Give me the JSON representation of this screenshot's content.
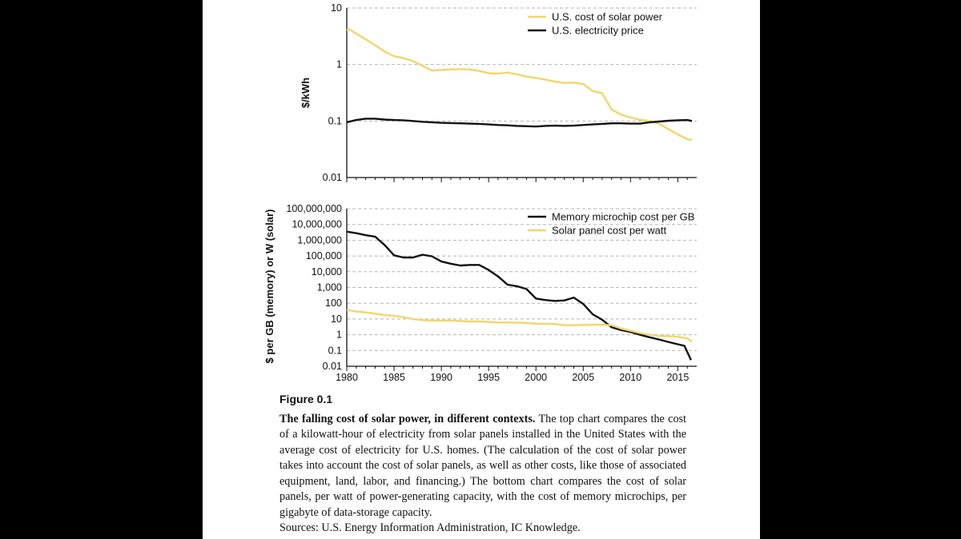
{
  "colors": {
    "solar": "#f2d66b",
    "black": "#111111",
    "grid": "#b5b5b5"
  },
  "caption": {
    "figure_label": "Figure 0.1",
    "title": "The falling cost of solar power, in different contexts.",
    "body": " The top chart compares the cost of a kilowatt-hour of electricity from solar panels installed in the United States with the average cost of electricity for U.S. homes. (The calculation of the cost of solar power takes into account the cost of solar panels, as well as other costs, like those of associated equipment, land, labor, and financing.) The bottom chart compares the cost of solar panels, per watt of power-generating capacity, with the cost of memory microchips, per gigabyte of data-storage capacity.",
    "sources": "Sources: U.S. Energy Information Administration, IC Knowledge."
  },
  "chart_data": [
    {
      "type": "line",
      "title": "",
      "ylabel": "$/kWh",
      "y_scale": "log",
      "ylim": [
        0.01,
        10
      ],
      "y_ticks": [
        0.01,
        0.1,
        1,
        10
      ],
      "y_tick_labels": [
        "0.01",
        "0.1",
        "1",
        "10"
      ],
      "xlim": [
        1980,
        2017
      ],
      "grid": "horizontal dashed",
      "legend": "top-right",
      "series": [
        {
          "name": "U.S. cost of solar power",
          "color": "#f2d66b",
          "points": [
            [
              1980,
              4.0
            ],
            [
              1980.3,
              4.2
            ],
            [
              1981,
              3.5
            ],
            [
              1982,
              2.8
            ],
            [
              1983,
              2.2
            ],
            [
              1984,
              1.7
            ],
            [
              1985,
              1.4
            ],
            [
              1986,
              1.3
            ],
            [
              1987,
              1.15
            ],
            [
              1988,
              0.95
            ],
            [
              1989,
              0.78
            ],
            [
              1990,
              0.8
            ],
            [
              1991,
              0.82
            ],
            [
              1992,
              0.83
            ],
            [
              1993,
              0.82
            ],
            [
              1994,
              0.77
            ],
            [
              1995,
              0.7
            ],
            [
              1996,
              0.69
            ],
            [
              1997,
              0.72
            ],
            [
              1998,
              0.67
            ],
            [
              1999,
              0.61
            ],
            [
              2000,
              0.58
            ],
            [
              2001,
              0.54
            ],
            [
              2002,
              0.5
            ],
            [
              2003,
              0.47
            ],
            [
              2004,
              0.48
            ],
            [
              2005,
              0.45
            ],
            [
              2006,
              0.34
            ],
            [
              2007,
              0.31
            ],
            [
              2008,
              0.16
            ],
            [
              2009,
              0.13
            ],
            [
              2010,
              0.115
            ],
            [
              2011,
              0.105
            ],
            [
              2012,
              0.1
            ],
            [
              2013,
              0.09
            ],
            [
              2014,
              0.072
            ],
            [
              2015,
              0.058
            ],
            [
              2016,
              0.048
            ],
            [
              2016.5,
              0.046
            ]
          ]
        },
        {
          "name": "U.S. electricity price",
          "color": "#111111",
          "points": [
            [
              1980,
              0.095
            ],
            [
              1981,
              0.104
            ],
            [
              1982,
              0.11
            ],
            [
              1983,
              0.11
            ],
            [
              1984,
              0.106
            ],
            [
              1985,
              0.104
            ],
            [
              1986,
              0.103
            ],
            [
              1987,
              0.1
            ],
            [
              1988,
              0.097
            ],
            [
              1989,
              0.095
            ],
            [
              1990,
              0.093
            ],
            [
              1991,
              0.092
            ],
            [
              1992,
              0.091
            ],
            [
              1993,
              0.09
            ],
            [
              1994,
              0.089
            ],
            [
              1995,
              0.087
            ],
            [
              1996,
              0.085
            ],
            [
              1997,
              0.084
            ],
            [
              1998,
              0.082
            ],
            [
              1999,
              0.081
            ],
            [
              2000,
              0.08
            ],
            [
              2001,
              0.082
            ],
            [
              2002,
              0.083
            ],
            [
              2003,
              0.082
            ],
            [
              2004,
              0.083
            ],
            [
              2005,
              0.085
            ],
            [
              2006,
              0.087
            ],
            [
              2007,
              0.089
            ],
            [
              2008,
              0.091
            ],
            [
              2009,
              0.091
            ],
            [
              2010,
              0.09
            ],
            [
              2011,
              0.09
            ],
            [
              2012,
              0.095
            ],
            [
              2013,
              0.098
            ],
            [
              2014,
              0.101
            ],
            [
              2015,
              0.103
            ],
            [
              2016,
              0.104
            ],
            [
              2016.5,
              0.1
            ]
          ]
        }
      ]
    },
    {
      "type": "line",
      "title": "",
      "ylabel": "$ per GB (memory) or W (solar)",
      "y_scale": "log",
      "ylim": [
        0.01,
        100000000
      ],
      "y_ticks": [
        0.01,
        0.1,
        1,
        10,
        100,
        1000,
        10000,
        100000,
        1000000,
        10000000,
        100000000
      ],
      "y_tick_labels": [
        "0.01",
        "0.1",
        "1",
        "10",
        "100",
        "1,000",
        "10,000",
        "100,000",
        "1,000,000",
        "10,000,000",
        "100,000,000"
      ],
      "xlim": [
        1980,
        2017
      ],
      "x_ticks": [
        1980,
        1985,
        1990,
        1995,
        2000,
        2005,
        2010,
        2015
      ],
      "x_tick_labels": [
        "1980",
        "1985",
        "1990",
        "1995",
        "2000",
        "2005",
        "2010",
        "2015"
      ],
      "grid": "horizontal dashed",
      "legend": "top-right",
      "series": [
        {
          "name": "Memory microchip cost per GB",
          "color": "#111111",
          "points": [
            [
              1980,
              3500000
            ],
            [
              1981,
              2800000
            ],
            [
              1982,
              2100000
            ],
            [
              1983,
              1700000
            ],
            [
              1984,
              500000
            ],
            [
              1985,
              110000
            ],
            [
              1986,
              80000
            ],
            [
              1987,
              80000
            ],
            [
              1988,
              120000
            ],
            [
              1989,
              95000
            ],
            [
              1990,
              45000
            ],
            [
              1991,
              32000
            ],
            [
              1992,
              25000
            ],
            [
              1993,
              27000
            ],
            [
              1994,
              27000
            ],
            [
              1995,
              13000
            ],
            [
              1996,
              5000
            ],
            [
              1997,
              1500
            ],
            [
              1998,
              1200
            ],
            [
              1999,
              800
            ],
            [
              2000,
              200
            ],
            [
              2001,
              160
            ],
            [
              2002,
              140
            ],
            [
              2003,
              150
            ],
            [
              2004,
              230
            ],
            [
              2005,
              90
            ],
            [
              2006,
              20
            ],
            [
              2007,
              9
            ],
            [
              2008,
              3
            ],
            [
              2009,
              2
            ],
            [
              2010,
              1.5
            ],
            [
              2011,
              1
            ],
            [
              2012,
              0.7
            ],
            [
              2013,
              0.5
            ],
            [
              2014,
              0.35
            ],
            [
              2015,
              0.25
            ],
            [
              2015.7,
              0.2
            ],
            [
              2016.4,
              0.025
            ]
          ]
        },
        {
          "name": "Solar panel cost per watt",
          "color": "#f2d66b",
          "points": [
            [
              1980,
              38
            ],
            [
              1981,
              30
            ],
            [
              1982,
              26
            ],
            [
              1983,
              22
            ],
            [
              1984,
              18
            ],
            [
              1985,
              16
            ],
            [
              1986,
              13
            ],
            [
              1987,
              10
            ],
            [
              1988,
              8.5
            ],
            [
              1989,
              8
            ],
            [
              1990,
              8
            ],
            [
              1991,
              8
            ],
            [
              1992,
              7.5
            ],
            [
              1993,
              7
            ],
            [
              1994,
              7
            ],
            [
              1995,
              6.5
            ],
            [
              1996,
              6
            ],
            [
              1997,
              6
            ],
            [
              1998,
              6
            ],
            [
              1999,
              5.5
            ],
            [
              2000,
              5
            ],
            [
              2001,
              5
            ],
            [
              2002,
              4.8
            ],
            [
              2003,
              4
            ],
            [
              2004,
              4
            ],
            [
              2005,
              4.2
            ],
            [
              2006,
              4.3
            ],
            [
              2007,
              4.4
            ],
            [
              2008,
              4
            ],
            [
              2009,
              2.5
            ],
            [
              2010,
              1.8
            ],
            [
              2011,
              1.3
            ],
            [
              2012,
              1
            ],
            [
              2013,
              0.85
            ],
            [
              2014,
              0.8
            ],
            [
              2015,
              0.75
            ],
            [
              2016,
              0.6
            ],
            [
              2016.5,
              0.35
            ]
          ]
        }
      ]
    }
  ]
}
